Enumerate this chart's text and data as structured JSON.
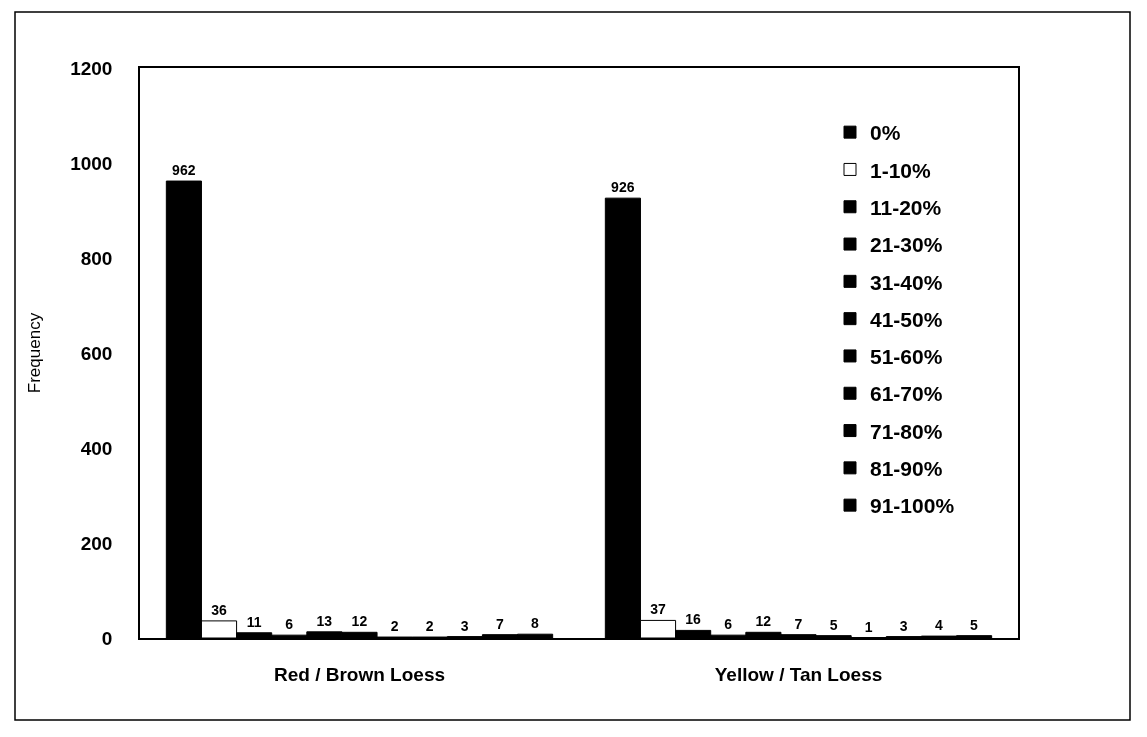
{
  "chart_data": {
    "type": "bar",
    "categories": [
      "Red / Brown Loess",
      "Yellow / Tan Loess"
    ],
    "ylabel": "Frequency",
    "ylim": [
      0,
      1200
    ],
    "yticks": [
      0,
      200,
      400,
      600,
      800,
      1000,
      1200
    ],
    "grid": false,
    "legend": "top right",
    "data_labels": true,
    "series": [
      {
        "name": "0%",
        "color": "#000000",
        "values": [
          962,
          926
        ]
      },
      {
        "name": "1-10%",
        "color": "#ffffff",
        "values": [
          36,
          37
        ]
      },
      {
        "name": "11-20%",
        "color": "#000000",
        "values": [
          11,
          16
        ]
      },
      {
        "name": "21-30%",
        "color": "#000000",
        "values": [
          6,
          6
        ]
      },
      {
        "name": "31-40%",
        "color": "#000000",
        "values": [
          13,
          12
        ]
      },
      {
        "name": "41-50%",
        "color": "#000000",
        "values": [
          12,
          7
        ]
      },
      {
        "name": "51-60%",
        "color": "#000000",
        "values": [
          2,
          5
        ]
      },
      {
        "name": "61-70%",
        "color": "#000000",
        "values": [
          2,
          1
        ]
      },
      {
        "name": "71-80%",
        "color": "#000000",
        "values": [
          3,
          3
        ]
      },
      {
        "name": "81-90%",
        "color": "#000000",
        "values": [
          7,
          4
        ]
      },
      {
        "name": "91-100%",
        "color": "#000000",
        "values": [
          8,
          5
        ]
      }
    ]
  }
}
